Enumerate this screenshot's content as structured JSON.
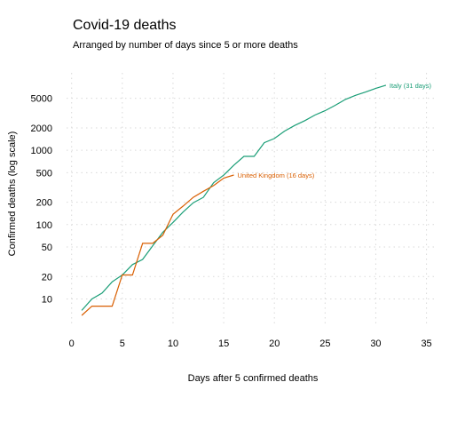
{
  "chart_data": {
    "type": "line",
    "title": "Covid-19 deaths",
    "subtitle": "Arranged by number of days since 5 or more deaths",
    "xlabel": "Days after 5 confirmed deaths",
    "ylabel": "Confirmed deaths (log scale)",
    "y_scale": "log",
    "grid": true,
    "xlim": [
      -0.5,
      36
    ],
    "ylim": [
      4.2,
      11000
    ],
    "x_ticks": [
      "0",
      "5",
      "10",
      "15",
      "20",
      "25",
      "30",
      "35"
    ],
    "y_ticks": [
      "10",
      "20",
      "50",
      "100",
      "200",
      "500",
      "1000",
      "2000",
      "5000"
    ],
    "series": [
      {
        "name": "Italy",
        "label": "Italy (31 days)",
        "color": "#1b9e77",
        "points": [
          [
            1,
            7
          ],
          [
            2,
            10
          ],
          [
            3,
            12
          ],
          [
            4,
            17
          ],
          [
            5,
            21
          ],
          [
            6,
            29
          ],
          [
            7,
            34
          ],
          [
            8,
            52
          ],
          [
            9,
            79
          ],
          [
            10,
            107
          ],
          [
            11,
            148
          ],
          [
            12,
            197
          ],
          [
            13,
            233
          ],
          [
            14,
            366
          ],
          [
            15,
            463
          ],
          [
            16,
            631
          ],
          [
            17,
            827
          ],
          [
            18,
            827
          ],
          [
            19,
            1266
          ],
          [
            20,
            1441
          ],
          [
            21,
            1809
          ],
          [
            22,
            2158
          ],
          [
            23,
            2503
          ],
          [
            24,
            2978
          ],
          [
            25,
            3405
          ],
          [
            26,
            4032
          ],
          [
            27,
            4825
          ],
          [
            28,
            5476
          ],
          [
            29,
            6077
          ],
          [
            30,
            6820
          ],
          [
            31,
            7503
          ]
        ]
      },
      {
        "name": "United Kingdom",
        "label": "United Kingdom (16 days)",
        "color": "#d95f02",
        "points": [
          [
            1,
            6
          ],
          [
            2,
            8
          ],
          [
            3,
            8
          ],
          [
            4,
            8
          ],
          [
            5,
            21
          ],
          [
            6,
            21
          ],
          [
            7,
            56
          ],
          [
            8,
            56
          ],
          [
            9,
            72
          ],
          [
            10,
            138
          ],
          [
            11,
            178
          ],
          [
            12,
            233
          ],
          [
            13,
            281
          ],
          [
            14,
            335
          ],
          [
            15,
            422
          ],
          [
            16,
            465
          ]
        ]
      }
    ]
  }
}
